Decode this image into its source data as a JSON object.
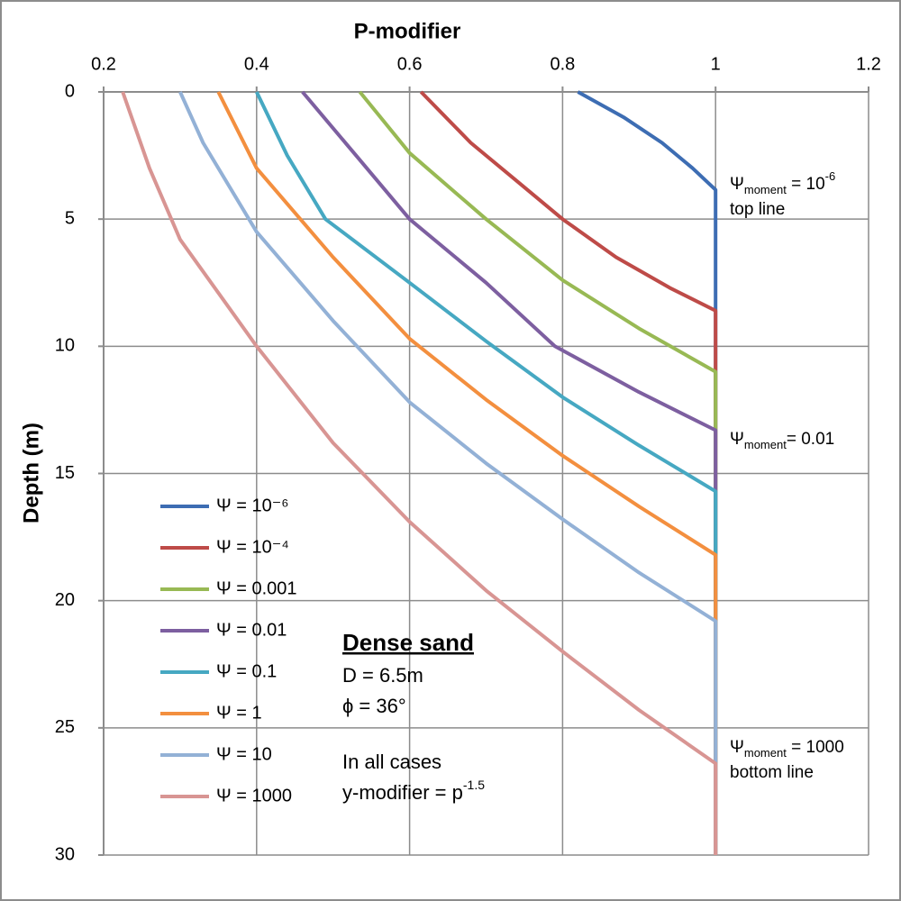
{
  "chart_data": {
    "type": "line",
    "xlabel": "P-modifier",
    "ylabel": "Depth (m)",
    "xlim": [
      0.2,
      1.2
    ],
    "xticks": [
      0.2,
      0.4,
      0.6,
      0.8,
      1,
      1.2
    ],
    "ylim": [
      0,
      30
    ],
    "yticks": [
      0,
      5,
      10,
      15,
      20,
      25,
      30
    ],
    "y_inverted": true,
    "x_axis_position": "top",
    "grid": true,
    "legend": "left",
    "series": [
      {
        "name": "Ψ = 10⁻⁶",
        "color": "#3d6db3",
        "x": [
          0.82,
          0.88,
          0.93,
          0.97,
          1,
          1
        ],
        "y": [
          0,
          1,
          2,
          3,
          3.85,
          30
        ]
      },
      {
        "name": "Ψ = 10⁻⁴",
        "color": "#be4b48",
        "x": [
          0.615,
          0.68,
          0.74,
          0.8,
          0.87,
          0.94,
          1,
          1
        ],
        "y": [
          0,
          2,
          3.5,
          5,
          6.5,
          7.7,
          8.6,
          30
        ]
      },
      {
        "name": "Ψ = 0.001",
        "color": "#98b954",
        "x": [
          0.535,
          0.6,
          0.7,
          0.8,
          0.9,
          1,
          1
        ],
        "y": [
          0,
          2.4,
          5,
          7.4,
          9.3,
          11,
          30
        ]
      },
      {
        "name": "Ψ = 0.01",
        "color": "#7d5fa0",
        "x": [
          0.46,
          0.53,
          0.6,
          0.7,
          0.79,
          0.9,
          1,
          1
        ],
        "y": [
          0,
          2.5,
          5,
          7.5,
          10,
          11.8,
          13.3,
          30
        ]
      },
      {
        "name": "Ψ = 0.1",
        "color": "#46a8c2",
        "x": [
          0.4,
          0.44,
          0.49,
          0.6,
          0.7,
          0.8,
          0.9,
          1,
          1
        ],
        "y": [
          0,
          2.5,
          5,
          7.5,
          9.8,
          12,
          13.9,
          15.7,
          30
        ]
      },
      {
        "name": "Ψ = 1",
        "color": "#f38f3f",
        "x": [
          0.35,
          0.4,
          0.5,
          0.6,
          0.7,
          0.8,
          0.9,
          1,
          1
        ],
        "y": [
          0,
          3,
          6.5,
          9.7,
          12.1,
          14.3,
          16.3,
          18.2,
          30
        ]
      },
      {
        "name": "Ψ = 10",
        "color": "#93b1d6",
        "x": [
          0.3,
          0.33,
          0.4,
          0.5,
          0.6,
          0.7,
          0.8,
          0.9,
          1,
          1
        ],
        "y": [
          0,
          2,
          5.5,
          9,
          12.2,
          14.6,
          16.8,
          18.9,
          20.8,
          30
        ]
      },
      {
        "name": "Ψ = 1000",
        "color": "#d89593",
        "x": [
          0.225,
          0.26,
          0.3,
          0.4,
          0.5,
          0.6,
          0.7,
          0.8,
          0.9,
          1,
          1
        ],
        "y": [
          0,
          3,
          5.8,
          10,
          13.8,
          16.9,
          19.6,
          22,
          24.3,
          26.4,
          30
        ]
      }
    ],
    "annotations": [
      {
        "symbol": "Ψ",
        "sub": "moment",
        "text": " = 10",
        "sup": "-6",
        "line2": "top line"
      },
      {
        "symbol": "Ψ",
        "sub": "moment",
        "text": "= 0.01"
      },
      {
        "symbol": "Ψ",
        "sub": "moment",
        "text": " = 1000",
        "line2": "bottom line"
      }
    ],
    "textbox": {
      "heading": "Dense sand",
      "lines": [
        "D = 6.5m",
        "ϕ = 36°",
        "In all cases"
      ],
      "formula": "y-modifier = p",
      "formula_sup": "-1.5"
    }
  }
}
